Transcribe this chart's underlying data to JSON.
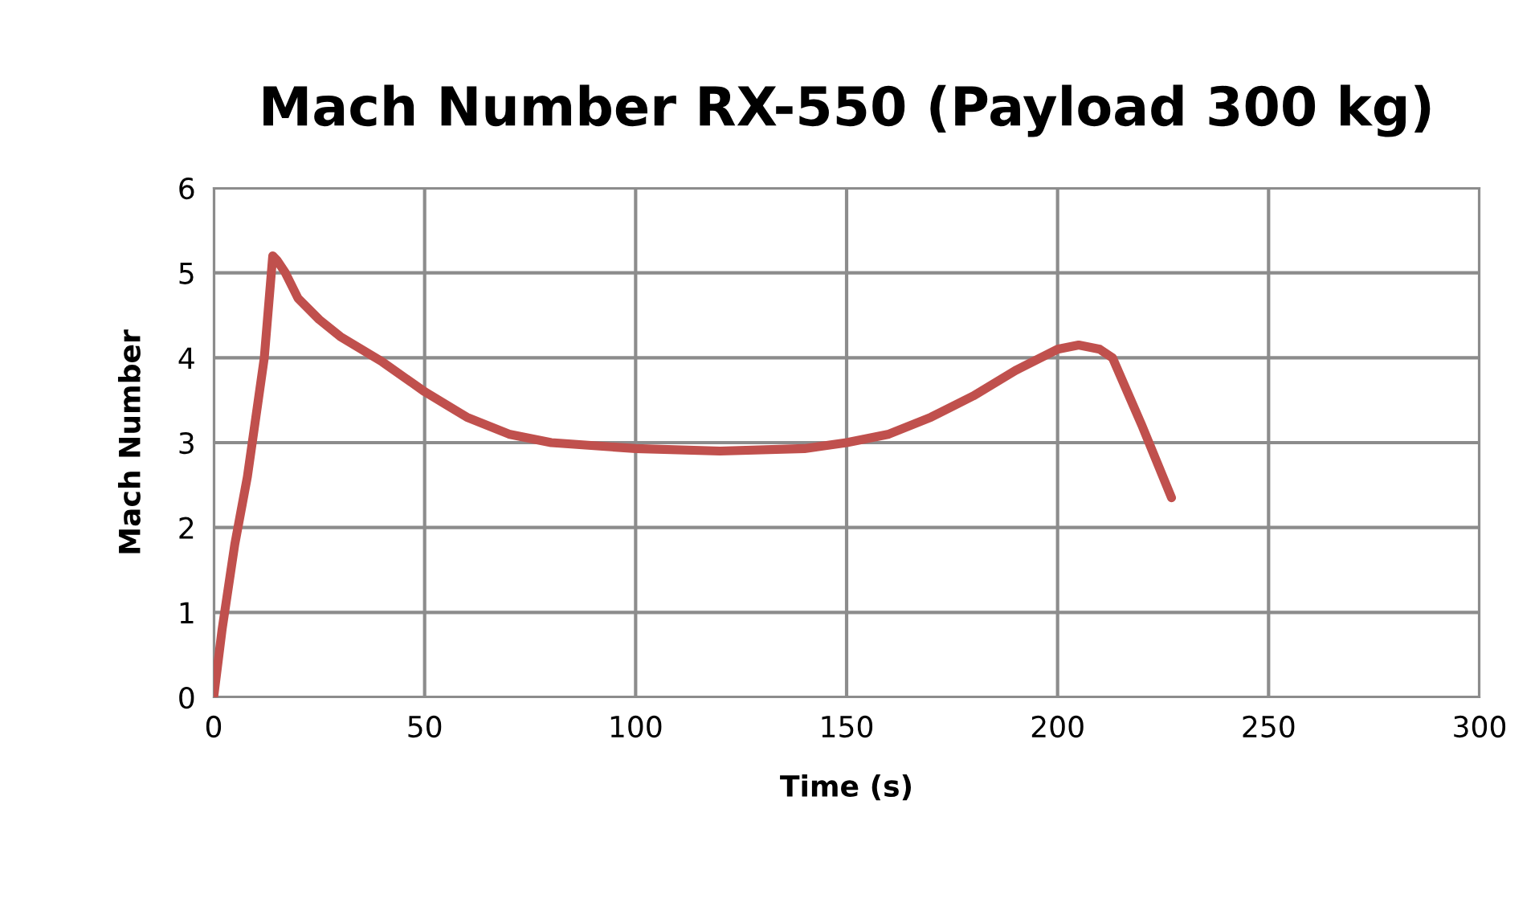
{
  "chart_data": {
    "type": "line",
    "title": "Mach Number RX-550 (Payload 300 kg)",
    "xlabel": "Time (s)",
    "ylabel": "Mach Number",
    "series": [
      {
        "color": "#c0504d",
        "x": [
          0,
          2,
          5,
          8,
          10,
          12,
          14,
          15,
          17,
          20,
          25,
          30,
          40,
          50,
          60,
          70,
          80,
          100,
          120,
          140,
          150,
          160,
          170,
          180,
          190,
          200,
          205,
          210,
          213,
          220,
          227
        ],
        "values": [
          0,
          0.8,
          1.8,
          2.6,
          3.3,
          4.0,
          5.2,
          5.15,
          5.0,
          4.7,
          4.45,
          4.25,
          3.95,
          3.6,
          3.3,
          3.1,
          3.0,
          2.93,
          2.9,
          2.93,
          3.0,
          3.1,
          3.3,
          3.55,
          3.85,
          4.1,
          4.15,
          4.1,
          4.0,
          3.2,
          2.35
        ]
      }
    ],
    "xlim": [
      0,
      300
    ],
    "xticks": [
      0,
      50,
      100,
      150,
      200,
      250,
      300
    ],
    "ylim": [
      0,
      6
    ],
    "yticks": [
      0,
      1,
      2,
      3,
      4,
      5,
      6
    ],
    "grid": true,
    "legend": false,
    "marker": "none",
    "line_style": "solid"
  }
}
